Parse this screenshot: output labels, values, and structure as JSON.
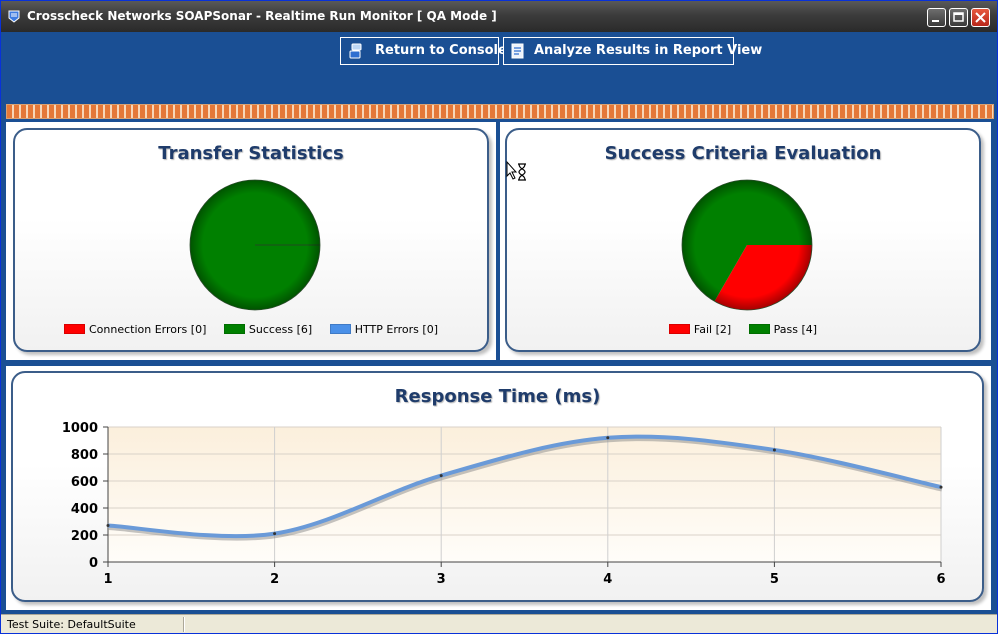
{
  "window": {
    "title": "Crosscheck Networks SOAPSonar - Realtime Run Monitor [ QA Mode ]"
  },
  "toolbar": {
    "return_label": "Return to Console",
    "analyze_label": "Analyze Results in Report View"
  },
  "transfer": {
    "title": "Transfer Statistics",
    "legend": [
      {
        "label": "Connection Errors [0]",
        "color": "#ff0000"
      },
      {
        "label": "Success [6]",
        "color": "#008000"
      },
      {
        "label": "HTTP Errors [0]",
        "color": "#4a90e8"
      }
    ]
  },
  "success": {
    "title": "Success Criteria Evaluation",
    "legend": [
      {
        "label": "Fail [2]",
        "color": "#ff0000"
      },
      {
        "label": "Pass [4]",
        "color": "#008000"
      }
    ]
  },
  "response": {
    "title": "Response Time (ms)"
  },
  "status": {
    "text": "Test Suite: DefaultSuite"
  },
  "chart_data": [
    {
      "type": "pie",
      "title": "Transfer Statistics",
      "labels": [
        "Connection Errors",
        "Success",
        "HTTP Errors"
      ],
      "values": [
        0,
        6,
        0
      ],
      "colors": [
        "#ff0000",
        "#008000",
        "#4a90e8"
      ]
    },
    {
      "type": "pie",
      "title": "Success Criteria Evaluation",
      "labels": [
        "Fail",
        "Pass"
      ],
      "values": [
        2,
        4
      ],
      "colors": [
        "#ff0000",
        "#008000"
      ]
    },
    {
      "type": "line",
      "title": "Response Time (ms)",
      "x": [
        1,
        2,
        3,
        4,
        5,
        6
      ],
      "series": [
        {
          "values": [
            270,
            210,
            640,
            920,
            830,
            555
          ]
        }
      ],
      "ylim": [
        0,
        1000
      ],
      "yticks": [
        0,
        200,
        400,
        600,
        800,
        1000
      ],
      "xlim": [
        1,
        6
      ],
      "grid": true,
      "line_color": "#6a9ad8"
    }
  ]
}
